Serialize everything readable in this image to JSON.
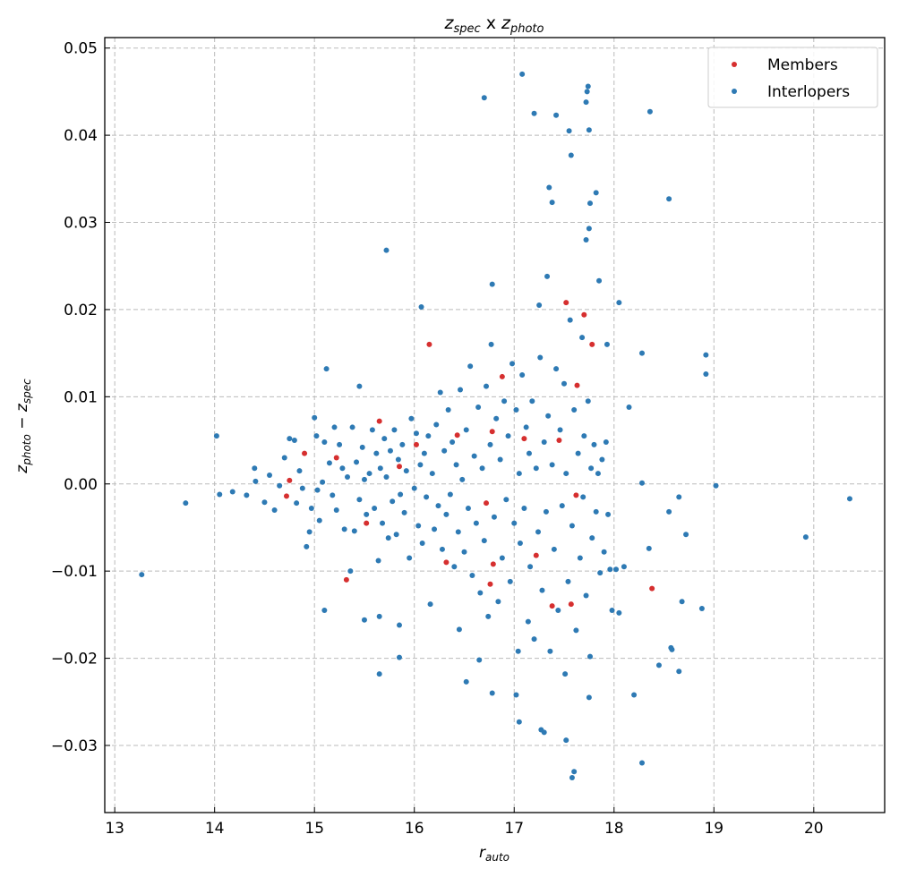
{
  "chart_data": {
    "type": "scatter",
    "title": {
      "var1": "z",
      "sub1": "spec",
      "mid": " x ",
      "var2": "z",
      "sub2": "photo"
    },
    "xlabel": {
      "var": "r",
      "sub": "auto"
    },
    "ylabel": {
      "var1": "z",
      "sub1": "photo",
      "mid": " − ",
      "var2": "z",
      "sub2": "spec"
    },
    "xlim": [
      12.9,
      20.71
    ],
    "ylim": [
      -0.0377,
      0.0512
    ],
    "xticks": [
      13,
      14,
      15,
      16,
      17,
      18,
      19,
      20
    ],
    "xtick_labels": [
      "13",
      "14",
      "15",
      "16",
      "17",
      "18",
      "19",
      "20"
    ],
    "yticks": [
      -0.03,
      -0.02,
      -0.01,
      0.0,
      0.01,
      0.02,
      0.03,
      0.04,
      0.05
    ],
    "ytick_labels": [
      "−0.03",
      "−0.02",
      "−0.01",
      "0.00",
      "0.01",
      "0.02",
      "0.03",
      "0.04",
      "0.05"
    ],
    "grid": true,
    "legend_position": "top-right",
    "series": [
      {
        "name": "Interlopers",
        "color": "#2e7ab4",
        "points": [
          [
            13.27,
            -0.0104
          ],
          [
            13.71,
            -0.0022
          ],
          [
            14.02,
            0.0055
          ],
          [
            14.05,
            -0.0012
          ],
          [
            14.18,
            -0.0009
          ],
          [
            14.32,
            -0.0013
          ],
          [
            14.4,
            0.0018
          ],
          [
            14.41,
            0.0003
          ],
          [
            14.5,
            -0.0021
          ],
          [
            14.55,
            0.001
          ],
          [
            14.6,
            -0.003
          ],
          [
            14.65,
            -0.0002
          ],
          [
            14.7,
            0.003
          ],
          [
            15.12,
            0.0132
          ],
          [
            15.1,
            -0.0145
          ],
          [
            15.45,
            0.0112
          ],
          [
            15.5,
            -0.0156
          ],
          [
            15.65,
            -0.0152
          ],
          [
            15.65,
            -0.0218
          ],
          [
            15.72,
            0.0268
          ],
          [
            15.85,
            -0.0162
          ],
          [
            15.85,
            -0.0199
          ],
          [
            16.07,
            0.0203
          ],
          [
            16.45,
            -0.0167
          ],
          [
            16.52,
            -0.0227
          ],
          [
            16.65,
            -0.0202
          ],
          [
            16.7,
            0.0443
          ],
          [
            16.78,
            0.0229
          ],
          [
            16.78,
            -0.024
          ],
          [
            17.02,
            -0.0242
          ],
          [
            17.05,
            -0.0273
          ],
          [
            17.08,
            0.047
          ],
          [
            17.2,
            0.0425
          ],
          [
            17.27,
            -0.0282
          ],
          [
            17.3,
            -0.0285
          ],
          [
            17.35,
            0.034
          ],
          [
            17.38,
            0.0323
          ],
          [
            17.42,
            0.0423
          ],
          [
            17.52,
            -0.0294
          ],
          [
            17.55,
            0.0405
          ],
          [
            17.57,
            0.0377
          ],
          [
            17.58,
            -0.0337
          ],
          [
            17.6,
            -0.033
          ],
          [
            17.72,
            0.0438
          ],
          [
            17.74,
            0.0456
          ],
          [
            17.73,
            0.045
          ],
          [
            17.75,
            0.0406
          ],
          [
            17.75,
            0.0293
          ],
          [
            17.72,
            0.028
          ],
          [
            17.76,
            0.0322
          ],
          [
            17.82,
            0.0334
          ],
          [
            17.85,
            0.0233
          ],
          [
            17.75,
            -0.0245
          ],
          [
            17.93,
            0.016
          ],
          [
            18.05,
            0.0208
          ],
          [
            18.15,
            0.0088
          ],
          [
            18.2,
            -0.0242
          ],
          [
            18.28,
            0.0001
          ],
          [
            18.28,
            0.015
          ],
          [
            18.28,
            -0.032
          ],
          [
            18.36,
            0.0427
          ],
          [
            18.35,
            -0.0074
          ],
          [
            18.45,
            -0.0208
          ],
          [
            18.55,
            0.0327
          ],
          [
            18.55,
            -0.0032
          ],
          [
            18.57,
            -0.0188
          ],
          [
            18.58,
            -0.019
          ],
          [
            18.65,
            -0.0015
          ],
          [
            18.65,
            -0.0215
          ],
          [
            18.68,
            -0.0135
          ],
          [
            18.72,
            -0.0058
          ],
          [
            18.88,
            -0.0143
          ],
          [
            18.92,
            0.0148
          ],
          [
            18.92,
            0.0126
          ],
          [
            19.02,
            -0.0002
          ],
          [
            19.92,
            -0.0061
          ],
          [
            20.36,
            -0.0017
          ],
          [
            14.75,
            0.0052
          ],
          [
            14.8,
            0.005
          ],
          [
            14.82,
            -0.0022
          ],
          [
            14.85,
            0.0015
          ],
          [
            14.88,
            -0.0005
          ],
          [
            14.92,
            -0.0072
          ],
          [
            14.95,
            -0.0055
          ],
          [
            14.97,
            -0.0028
          ],
          [
            15.0,
            0.0076
          ],
          [
            15.02,
            0.0055
          ],
          [
            15.03,
            -0.0007
          ],
          [
            15.05,
            -0.0042
          ],
          [
            15.08,
            0.0002
          ],
          [
            15.1,
            0.0048
          ],
          [
            15.15,
            0.0024
          ],
          [
            15.18,
            -0.0013
          ],
          [
            15.2,
            0.0065
          ],
          [
            15.22,
            -0.003
          ],
          [
            15.25,
            0.0045
          ],
          [
            15.28,
            0.0018
          ],
          [
            15.3,
            -0.0052
          ],
          [
            15.33,
            0.0008
          ],
          [
            15.36,
            -0.01
          ],
          [
            15.38,
            0.0065
          ],
          [
            15.4,
            -0.0054
          ],
          [
            15.42,
            0.0025
          ],
          [
            15.45,
            -0.0018
          ],
          [
            15.48,
            0.0042
          ],
          [
            15.5,
            0.0005
          ],
          [
            15.52,
            -0.0035
          ],
          [
            15.55,
            0.0012
          ],
          [
            15.58,
            0.0062
          ],
          [
            15.6,
            -0.0028
          ],
          [
            15.62,
            0.0035
          ],
          [
            15.64,
            -0.0088
          ],
          [
            15.66,
            0.0018
          ],
          [
            15.68,
            -0.0045
          ],
          [
            15.7,
            0.0052
          ],
          [
            15.72,
            0.0008
          ],
          [
            15.74,
            -0.0062
          ],
          [
            15.76,
            0.0038
          ],
          [
            15.78,
            -0.002
          ],
          [
            15.8,
            0.0062
          ],
          [
            15.82,
            -0.0058
          ],
          [
            15.84,
            0.0028
          ],
          [
            15.86,
            -0.0012
          ],
          [
            15.88,
            0.0045
          ],
          [
            15.9,
            -0.0033
          ],
          [
            15.92,
            0.0015
          ],
          [
            15.95,
            -0.0085
          ],
          [
            15.97,
            0.0075
          ],
          [
            16.0,
            -0.0005
          ],
          [
            16.02,
            0.0058
          ],
          [
            16.04,
            -0.0048
          ],
          [
            16.06,
            0.0022
          ],
          [
            16.08,
            -0.0068
          ],
          [
            16.1,
            0.0035
          ],
          [
            16.12,
            -0.0015
          ],
          [
            16.14,
            0.0055
          ],
          [
            16.16,
            -0.0138
          ],
          [
            16.18,
            0.0012
          ],
          [
            16.2,
            -0.0052
          ],
          [
            16.22,
            0.0068
          ],
          [
            16.24,
            -0.0025
          ],
          [
            16.26,
            0.0105
          ],
          [
            16.28,
            -0.0075
          ],
          [
            16.3,
            0.0038
          ],
          [
            16.32,
            -0.0035
          ],
          [
            16.34,
            0.0085
          ],
          [
            16.36,
            -0.0012
          ],
          [
            16.38,
            0.0048
          ],
          [
            16.4,
            -0.0095
          ],
          [
            16.42,
            0.0022
          ],
          [
            16.44,
            -0.0055
          ],
          [
            16.46,
            0.0108
          ],
          [
            16.48,
            0.0005
          ],
          [
            16.5,
            -0.0078
          ],
          [
            16.52,
            0.0062
          ],
          [
            16.54,
            -0.0028
          ],
          [
            16.56,
            0.0135
          ],
          [
            16.58,
            -0.0105
          ],
          [
            16.6,
            0.0032
          ],
          [
            16.62,
            -0.0045
          ],
          [
            16.64,
            0.0088
          ],
          [
            16.66,
            -0.0125
          ],
          [
            16.68,
            0.0018
          ],
          [
            16.7,
            -0.0065
          ],
          [
            16.72,
            0.0112
          ],
          [
            16.74,
            -0.0152
          ],
          [
            16.76,
            0.0045
          ],
          [
            16.77,
            0.016
          ],
          [
            16.8,
            -0.0038
          ],
          [
            16.82,
            0.0075
          ],
          [
            16.84,
            -0.0135
          ],
          [
            16.86,
            0.0028
          ],
          [
            16.88,
            -0.0085
          ],
          [
            16.9,
            0.0095
          ],
          [
            16.92,
            -0.0018
          ],
          [
            16.94,
            0.0055
          ],
          [
            16.96,
            -0.0112
          ],
          [
            16.98,
            0.0138
          ],
          [
            17.0,
            -0.0045
          ],
          [
            17.02,
            0.0085
          ],
          [
            17.04,
            -0.0192
          ],
          [
            17.05,
            0.0012
          ],
          [
            17.06,
            -0.0068
          ],
          [
            17.08,
            0.0125
          ],
          [
            17.1,
            -0.0028
          ],
          [
            17.12,
            0.0065
          ],
          [
            17.14,
            -0.0158
          ],
          [
            17.15,
            0.0035
          ],
          [
            17.16,
            -0.0095
          ],
          [
            17.18,
            0.0095
          ],
          [
            17.2,
            -0.0178
          ],
          [
            17.22,
            0.0018
          ],
          [
            17.24,
            -0.0055
          ],
          [
            17.25,
            0.0205
          ],
          [
            17.26,
            0.0145
          ],
          [
            17.28,
            -0.0122
          ],
          [
            17.3,
            0.0048
          ],
          [
            17.32,
            -0.0032
          ],
          [
            17.33,
            0.0238
          ],
          [
            17.34,
            0.0078
          ],
          [
            17.36,
            -0.0192
          ],
          [
            17.38,
            0.0022
          ],
          [
            17.4,
            -0.0075
          ],
          [
            17.42,
            0.0132
          ],
          [
            17.44,
            -0.0145
          ],
          [
            17.46,
            0.0062
          ],
          [
            17.48,
            -0.0025
          ],
          [
            17.5,
            0.0115
          ],
          [
            17.51,
            -0.0218
          ],
          [
            17.52,
            0.0012
          ],
          [
            17.54,
            -0.0112
          ],
          [
            17.56,
            0.0188
          ],
          [
            17.58,
            -0.0048
          ],
          [
            17.6,
            0.0085
          ],
          [
            17.62,
            -0.0168
          ],
          [
            17.64,
            0.0035
          ],
          [
            17.66,
            -0.0085
          ],
          [
            17.68,
            0.0168
          ],
          [
            17.69,
            -0.0015
          ],
          [
            17.7,
            0.0055
          ],
          [
            17.72,
            -0.0128
          ],
          [
            17.74,
            0.0095
          ],
          [
            17.76,
            -0.0198
          ],
          [
            17.77,
            0.0018
          ],
          [
            17.78,
            -0.0062
          ],
          [
            17.8,
            0.0045
          ],
          [
            17.82,
            -0.0032
          ],
          [
            17.84,
            0.0012
          ],
          [
            17.86,
            -0.0102
          ],
          [
            17.88,
            0.0028
          ],
          [
            17.9,
            -0.0078
          ],
          [
            17.92,
            0.0048
          ],
          [
            17.94,
            -0.0035
          ],
          [
            17.96,
            -0.0098
          ],
          [
            17.98,
            -0.0145
          ],
          [
            18.02,
            -0.0098
          ],
          [
            18.05,
            -0.0148
          ],
          [
            18.1,
            -0.0095
          ]
        ]
      },
      {
        "name": "Members",
        "color": "#d62f2f",
        "points": [
          [
            14.75,
            0.0004
          ],
          [
            14.72,
            -0.0014
          ],
          [
            14.9,
            0.0035
          ],
          [
            15.22,
            0.003
          ],
          [
            15.32,
            -0.011
          ],
          [
            15.52,
            -0.0045
          ],
          [
            15.65,
            0.0072
          ],
          [
            15.85,
            0.002
          ],
          [
            16.02,
            0.0045
          ],
          [
            16.15,
            0.016
          ],
          [
            16.32,
            -0.009
          ],
          [
            16.43,
            0.0056
          ],
          [
            16.72,
            -0.0022
          ],
          [
            16.76,
            -0.0115
          ],
          [
            16.79,
            -0.0092
          ],
          [
            16.78,
            0.006
          ],
          [
            16.88,
            0.0123
          ],
          [
            17.1,
            0.0052
          ],
          [
            17.22,
            -0.0082
          ],
          [
            17.38,
            -0.014
          ],
          [
            17.45,
            0.005
          ],
          [
            17.52,
            0.0208
          ],
          [
            17.57,
            -0.0138
          ],
          [
            17.62,
            -0.0013
          ],
          [
            17.63,
            0.0113
          ],
          [
            17.7,
            0.0194
          ],
          [
            17.78,
            0.016
          ],
          [
            18.38,
            -0.012
          ]
        ]
      }
    ]
  }
}
